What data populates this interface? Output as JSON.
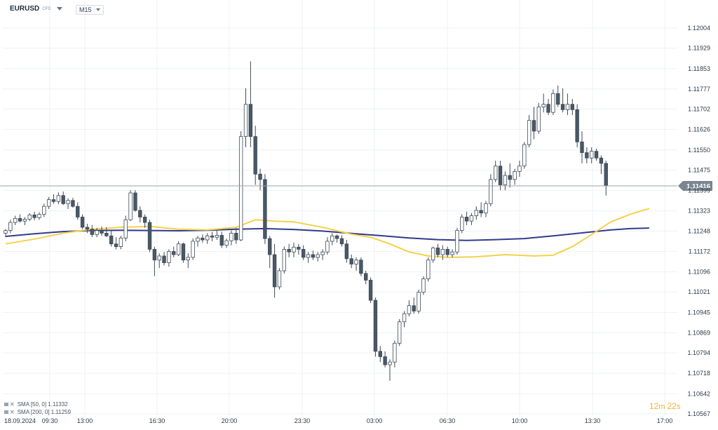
{
  "header": {
    "symbol": "EURUSD",
    "symbol_sub": "CFD",
    "timeframe": "M15"
  },
  "legend": [
    {
      "label": "SMA [50, 0]",
      "value": "1.11332"
    },
    {
      "label": "SMA [200, 0]",
      "value": "1.11259"
    }
  ],
  "countdown": {
    "minutes": "12",
    "m": "m",
    "seconds": "22",
    "s": "s"
  },
  "colors": {
    "up_fill": "#ffffff",
    "down_fill": "#4a5866",
    "wick": "#3e4a56",
    "sma50": "#f3d24a",
    "sma200": "#333a8c",
    "price_tag": "#7b8692",
    "grid": "#eef1f4"
  },
  "chart_data": {
    "type": "candlestick",
    "title": "EURUSD",
    "date_label": "18.09.2024",
    "x_ticks": [
      "09:30",
      "13:00",
      "16:30",
      "20:00",
      "23:30",
      "03:00",
      "06:30",
      "10:00",
      "13:30",
      "17:00"
    ],
    "y_ticks": [
      "1.12004",
      "1.11929",
      "1.11853",
      "1.11777",
      "1.11702",
      "1.11626",
      "1.11550",
      "1.11475",
      "1.11399",
      "1.11323",
      "1.11248",
      "1.11172",
      "1.11096",
      "1.11021",
      "1.10945",
      "1.10869",
      "1.10794",
      "1.10718",
      "1.10642",
      "1.10567"
    ],
    "ylim": [
      1.10567,
      1.12004
    ],
    "last_price": "1.11416",
    "candles": [
      [
        1.1124,
        1.11255,
        1.11225,
        1.1125
      ],
      [
        1.1125,
        1.1129,
        1.1124,
        1.1128
      ],
      [
        1.1128,
        1.11305,
        1.1127,
        1.11295
      ],
      [
        1.11295,
        1.1131,
        1.1128,
        1.11285
      ],
      [
        1.11285,
        1.113,
        1.1127,
        1.11292
      ],
      [
        1.11292,
        1.11315,
        1.11285,
        1.11308
      ],
      [
        1.11308,
        1.1132,
        1.11288,
        1.11298
      ],
      [
        1.11298,
        1.11318,
        1.1129,
        1.1131
      ],
      [
        1.1131,
        1.1135,
        1.113,
        1.1134
      ],
      [
        1.1134,
        1.11375,
        1.1133,
        1.11365
      ],
      [
        1.11365,
        1.11385,
        1.1135,
        1.11358
      ],
      [
        1.11358,
        1.11392,
        1.11348,
        1.1138
      ],
      [
        1.1138,
        1.11395,
        1.11345,
        1.1135
      ],
      [
        1.1135,
        1.1137,
        1.1133,
        1.11362
      ],
      [
        1.11362,
        1.11372,
        1.11335,
        1.1134
      ],
      [
        1.1134,
        1.11355,
        1.1129,
        1.113
      ],
      [
        1.113,
        1.1131,
        1.11255,
        1.11262
      ],
      [
        1.11262,
        1.11275,
        1.1124,
        1.11255
      ],
      [
        1.11255,
        1.1127,
        1.11225,
        1.11235
      ],
      [
        1.11235,
        1.1126,
        1.11225,
        1.1125
      ],
      [
        1.1125,
        1.11265,
        1.1123,
        1.1124
      ],
      [
        1.1124,
        1.11262,
        1.11225,
        1.1123
      ],
      [
        1.1123,
        1.11248,
        1.1119,
        1.112
      ],
      [
        1.112,
        1.11225,
        1.1118,
        1.1119
      ],
      [
        1.1119,
        1.1123,
        1.1118,
        1.11222
      ],
      [
        1.11222,
        1.11305,
        1.1121,
        1.1129
      ],
      [
        1.1129,
        1.114,
        1.11285,
        1.1139
      ],
      [
        1.1139,
        1.114,
        1.1132,
        1.11325
      ],
      [
        1.11325,
        1.1134,
        1.1128,
        1.113
      ],
      [
        1.113,
        1.1131,
        1.1126,
        1.1128
      ],
      [
        1.1128,
        1.1129,
        1.1117,
        1.1118
      ],
      [
        1.1118,
        1.1119,
        1.1108,
        1.1114
      ],
      [
        1.1114,
        1.11165,
        1.1111,
        1.11155
      ],
      [
        1.11155,
        1.1117,
        1.1112,
        1.1113
      ],
      [
        1.1113,
        1.1118,
        1.11115,
        1.11172
      ],
      [
        1.11172,
        1.1119,
        1.1115,
        1.1116
      ],
      [
        1.1116,
        1.1121,
        1.11155,
        1.112
      ],
      [
        1.112,
        1.11205,
        1.1113,
        1.1114
      ],
      [
        1.1114,
        1.11165,
        1.1111,
        1.1115
      ],
      [
        1.1115,
        1.1122,
        1.1114,
        1.1121
      ],
      [
        1.1121,
        1.1123,
        1.1119,
        1.11222
      ],
      [
        1.11222,
        1.11235,
        1.11205,
        1.11215
      ],
      [
        1.11215,
        1.1124,
        1.112,
        1.1123
      ],
      [
        1.1123,
        1.11245,
        1.1121,
        1.11225
      ],
      [
        1.11225,
        1.1125,
        1.11215,
        1.11232
      ],
      [
        1.11232,
        1.11245,
        1.11185,
        1.11195
      ],
      [
        1.11195,
        1.1122,
        1.11185,
        1.11212
      ],
      [
        1.11212,
        1.1125,
        1.11195,
        1.1124
      ],
      [
        1.1124,
        1.1126,
        1.112,
        1.11215
      ],
      [
        1.11215,
        1.1162,
        1.1121,
        1.116
      ],
      [
        1.116,
        1.1178,
        1.1156,
        1.1172
      ],
      [
        1.1172,
        1.1188,
        1.1156,
        1.116
      ],
      [
        1.116,
        1.1164,
        1.1142,
        1.1146
      ],
      [
        1.1146,
        1.1148,
        1.114,
        1.1144
      ],
      [
        1.1144,
        1.1146,
        1.112,
        1.1122
      ],
      [
        1.1122,
        1.1123,
        1.1111,
        1.1116
      ],
      [
        1.1116,
        1.112,
        1.11,
        1.1104
      ],
      [
        1.1104,
        1.1111,
        1.1103,
        1.111
      ],
      [
        1.111,
        1.1119,
        1.1109,
        1.1118
      ],
      [
        1.1118,
        1.112,
        1.1115,
        1.1117
      ],
      [
        1.1117,
        1.11205,
        1.1115,
        1.11188
      ],
      [
        1.11188,
        1.112,
        1.1116,
        1.1118
      ],
      [
        1.1118,
        1.11195,
        1.1114,
        1.1115
      ],
      [
        1.1115,
        1.1117,
        1.1113,
        1.1116
      ],
      [
        1.1116,
        1.11175,
        1.1114,
        1.1115
      ],
      [
        1.1115,
        1.1117,
        1.11135,
        1.1116
      ],
      [
        1.1116,
        1.1118,
        1.1114,
        1.1117
      ],
      [
        1.1117,
        1.11225,
        1.1116,
        1.1121
      ],
      [
        1.1121,
        1.1124,
        1.11195,
        1.1123
      ],
      [
        1.1123,
        1.11235,
        1.11205,
        1.1122
      ],
      [
        1.1122,
        1.11232,
        1.1119,
        1.112
      ],
      [
        1.112,
        1.11215,
        1.1113,
        1.11145
      ],
      [
        1.11145,
        1.1116,
        1.1111,
        1.11125
      ],
      [
        1.11125,
        1.1115,
        1.111,
        1.1114
      ],
      [
        1.1114,
        1.1115,
        1.1108,
        1.1109
      ],
      [
        1.1109,
        1.111,
        1.1105,
        1.11065
      ],
      [
        1.11065,
        1.11075,
        1.1098,
        1.1099
      ],
      [
        1.1099,
        1.11,
        1.1078,
        1.108
      ],
      [
        1.108,
        1.1082,
        1.1076,
        1.1078
      ],
      [
        1.1078,
        1.108,
        1.1074,
        1.1075
      ],
      [
        1.1075,
        1.1077,
        1.1069,
        1.1076
      ],
      [
        1.1076,
        1.1084,
        1.1074,
        1.1083
      ],
      [
        1.1083,
        1.1092,
        1.1082,
        1.1091
      ],
      [
        1.1091,
        1.1095,
        1.1089,
        1.1094
      ],
      [
        1.1094,
        1.1099,
        1.1093,
        1.1097
      ],
      [
        1.1097,
        1.11,
        1.1094,
        1.1095
      ],
      [
        1.1095,
        1.1103,
        1.1094,
        1.1102
      ],
      [
        1.1102,
        1.1108,
        1.1101,
        1.1107
      ],
      [
        1.1107,
        1.1115,
        1.1106,
        1.1114
      ],
      [
        1.1114,
        1.1119,
        1.1113,
        1.11185
      ],
      [
        1.11185,
        1.112,
        1.1115,
        1.1116
      ],
      [
        1.1116,
        1.11195,
        1.1114,
        1.1118
      ],
      [
        1.1118,
        1.1119,
        1.1115,
        1.1116
      ],
      [
        1.1116,
        1.1118,
        1.1115,
        1.1117
      ],
      [
        1.1117,
        1.1126,
        1.1116,
        1.1125
      ],
      [
        1.1125,
        1.1131,
        1.1124,
        1.113
      ],
      [
        1.113,
        1.1132,
        1.1127,
        1.11285
      ],
      [
        1.11285,
        1.11315,
        1.1127,
        1.11305
      ],
      [
        1.11305,
        1.1134,
        1.1129,
        1.11325
      ],
      [
        1.11325,
        1.11355,
        1.113,
        1.11315
      ],
      [
        1.11315,
        1.1136,
        1.113,
        1.1135
      ],
      [
        1.1135,
        1.1146,
        1.1134,
        1.1144
      ],
      [
        1.1144,
        1.1151,
        1.1143,
        1.1149
      ],
      [
        1.1149,
        1.1151,
        1.114,
        1.1142
      ],
      [
        1.1142,
        1.1147,
        1.114,
        1.11455
      ],
      [
        1.11455,
        1.115,
        1.1141,
        1.1144
      ],
      [
        1.1144,
        1.1148,
        1.1142,
        1.1147
      ],
      [
        1.1147,
        1.1151,
        1.1145,
        1.1149
      ],
      [
        1.1149,
        1.1158,
        1.1148,
        1.1157
      ],
      [
        1.1157,
        1.1168,
        1.1156,
        1.1166
      ],
      [
        1.1166,
        1.1171,
        1.1159,
        1.1162
      ],
      [
        1.1162,
        1.11725,
        1.1161,
        1.1171
      ],
      [
        1.1171,
        1.1176,
        1.1169,
        1.1172
      ],
      [
        1.1172,
        1.1174,
        1.1168,
        1.1169
      ],
      [
        1.1169,
        1.11775,
        1.1168,
        1.1176
      ],
      [
        1.1176,
        1.1179,
        1.1171,
        1.1172
      ],
      [
        1.1172,
        1.1178,
        1.1169,
        1.117
      ],
      [
        1.117,
        1.1176,
        1.1168,
        1.1172
      ],
      [
        1.1172,
        1.1174,
        1.1168,
        1.117
      ],
      [
        1.117,
        1.1172,
        1.1156,
        1.1158
      ],
      [
        1.1158,
        1.1162,
        1.115,
        1.1154
      ],
      [
        1.1154,
        1.1156,
        1.115,
        1.1152
      ],
      [
        1.1152,
        1.1156,
        1.115,
        1.11545
      ],
      [
        1.11545,
        1.11555,
        1.1151,
        1.1152
      ],
      [
        1.1152,
        1.1153,
        1.1146,
        1.115
      ],
      [
        1.115,
        1.1151,
        1.1138,
        1.11416
      ]
    ],
    "sma50": [
      [
        0,
        1.112
      ],
      [
        6,
        1.11218
      ],
      [
        12,
        1.1124
      ],
      [
        18,
        1.11255
      ],
      [
        24,
        1.11262
      ],
      [
        30,
        1.11265
      ],
      [
        36,
        1.11255
      ],
      [
        42,
        1.11252
      ],
      [
        48,
        1.11262
      ],
      [
        52,
        1.1129
      ],
      [
        56,
        1.11285
      ],
      [
        60,
        1.11282
      ],
      [
        66,
        1.11262
      ],
      [
        72,
        1.11236
      ],
      [
        76,
        1.11225
      ],
      [
        80,
        1.112
      ],
      [
        84,
        1.1117
      ],
      [
        88,
        1.11155
      ],
      [
        92,
        1.1115
      ],
      [
        98,
        1.11152
      ],
      [
        104,
        1.1116
      ],
      [
        110,
        1.11155
      ],
      [
        114,
        1.11158
      ],
      [
        118,
        1.1119
      ],
      [
        122,
        1.11235
      ],
      [
        126,
        1.11282
      ],
      [
        130,
        1.1131
      ],
      [
        134,
        1.11332
      ]
    ],
    "sma200": [
      [
        0,
        1.11228
      ],
      [
        6,
        1.11238
      ],
      [
        12,
        1.11246
      ],
      [
        18,
        1.1125
      ],
      [
        24,
        1.11251
      ],
      [
        30,
        1.1125
      ],
      [
        36,
        1.11249
      ],
      [
        42,
        1.11251
      ],
      [
        48,
        1.11255
      ],
      [
        54,
        1.11257
      ],
      [
        60,
        1.11254
      ],
      [
        66,
        1.11248
      ],
      [
        72,
        1.11239
      ],
      [
        78,
        1.11231
      ],
      [
        84,
        1.11222
      ],
      [
        90,
        1.11216
      ],
      [
        96,
        1.11213
      ],
      [
        102,
        1.11216
      ],
      [
        108,
        1.1122
      ],
      [
        114,
        1.1123
      ],
      [
        120,
        1.11241
      ],
      [
        126,
        1.11252
      ],
      [
        130,
        1.11257
      ],
      [
        134,
        1.11259
      ]
    ]
  }
}
